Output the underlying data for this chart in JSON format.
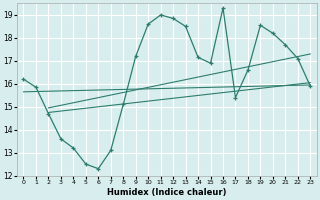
{
  "xlabel": "Humidex (Indice chaleur)",
  "bg_color": "#d8eeee",
  "grid_color": "#ffffff",
  "line_color": "#2d7d6e",
  "xlim": [
    -0.5,
    23.5
  ],
  "ylim": [
    12,
    19.5
  ],
  "yticks": [
    12,
    13,
    14,
    15,
    16,
    17,
    18,
    19
  ],
  "xticks": [
    0,
    1,
    2,
    3,
    4,
    5,
    6,
    7,
    8,
    9,
    10,
    11,
    12,
    13,
    14,
    15,
    16,
    17,
    18,
    19,
    20,
    21,
    22,
    23
  ],
  "series1_x": [
    0,
    1,
    2,
    3,
    4,
    5,
    6,
    7,
    8,
    9,
    10,
    11,
    12,
    13,
    14,
    15,
    16,
    17,
    18,
    19,
    20,
    21,
    22,
    23
  ],
  "series1_y": [
    16.2,
    15.85,
    14.7,
    13.6,
    13.2,
    12.5,
    12.3,
    13.1,
    15.1,
    17.2,
    18.6,
    19.0,
    18.85,
    18.5,
    17.15,
    16.9,
    19.3,
    15.4,
    16.6,
    18.55,
    18.2,
    17.7,
    17.1,
    15.9
  ],
  "line1_x": [
    0,
    23
  ],
  "line1_y": [
    15.65,
    15.95
  ],
  "line2_x": [
    2,
    23
  ],
  "line2_y": [
    14.95,
    17.3
  ],
  "line3_x": [
    2,
    23
  ],
  "line3_y": [
    14.75,
    16.05
  ]
}
